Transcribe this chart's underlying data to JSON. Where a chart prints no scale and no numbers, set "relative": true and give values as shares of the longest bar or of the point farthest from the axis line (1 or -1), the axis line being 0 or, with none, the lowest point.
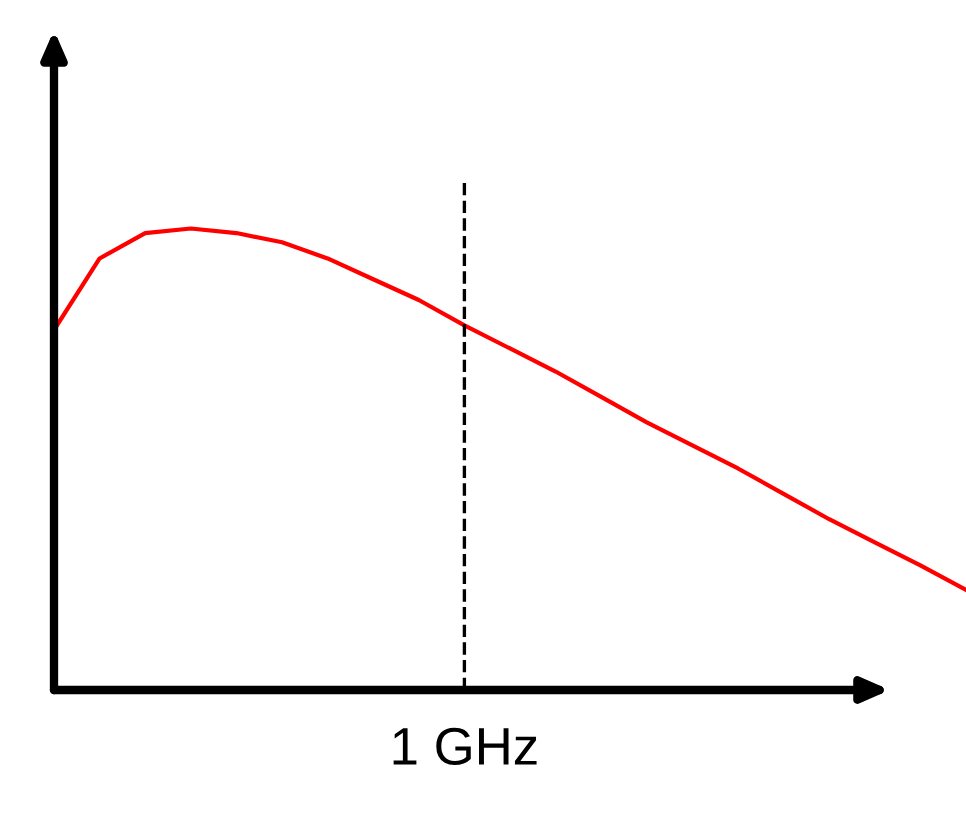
{
  "chart_data": {
    "type": "line",
    "relative": true,
    "categories": [
      null,
      null,
      null,
      null,
      null,
      null,
      null,
      null,
      null,
      null,
      null,
      null,
      null,
      null,
      null,
      null,
      null,
      null,
      null,
      null,
      null
    ],
    "annotations": [
      "1 GHz"
    ],
    "series": [
      {
        "color": "#ff0000",
        "values": [
          0.78,
          0.935,
          0.99,
          1.0,
          0.99,
          0.97,
          0.935,
          0.89,
          0.845,
          0.79,
          0.74,
          0.69,
          0.635,
          0.58,
          0.53,
          0.48,
          0.425,
          0.37,
          0.32,
          0.27,
          0.217
        ]
      }
    ],
    "marker": "none",
    "line_style": "solid"
  }
}
